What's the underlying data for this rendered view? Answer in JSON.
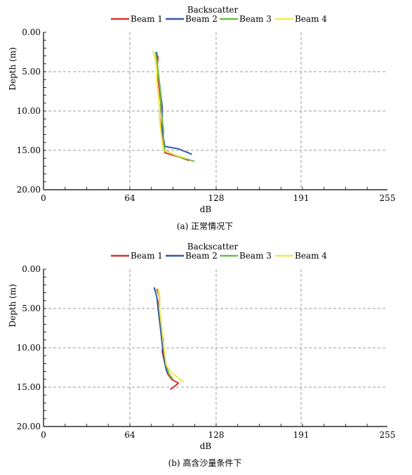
{
  "chart_data": [
    {
      "type": "line",
      "title": "Backscatter",
      "xlabel": "dB",
      "ylabel": "Depth (m)",
      "xlim": [
        0,
        255
      ],
      "ylim": [
        0,
        20
      ],
      "y_inverted": true,
      "xticks": [
        "0",
        "64",
        "128",
        "191",
        "255"
      ],
      "xtick_values": [
        0,
        64,
        128,
        191,
        255
      ],
      "yticks": [
        "0.00",
        "5.00",
        "10.00",
        "15.00",
        "20.00"
      ],
      "ytick_values": [
        0,
        5,
        10,
        15,
        20
      ],
      "grid": true,
      "legend_position": "top",
      "caption": "(a) 正常情况下",
      "series": [
        {
          "name": "Beam 1",
          "color": "#d9342b",
          "x": [
            83,
            85,
            84,
            85,
            86,
            87,
            86,
            87,
            88,
            89,
            90,
            100,
            108
          ],
          "y": [
            2.5,
            3.2,
            4.5,
            6.0,
            7.5,
            9.0,
            10.5,
            12.0,
            13.5,
            14.5,
            15.3,
            15.8,
            16.3
          ]
        },
        {
          "name": "Beam 2",
          "color": "#2e5aa8",
          "x": [
            84,
            84,
            85,
            86,
            87,
            88,
            88,
            88,
            89,
            90,
            100,
            110
          ],
          "y": [
            2.5,
            3.5,
            5.0,
            6.5,
            8.0,
            9.5,
            11.0,
            12.5,
            13.5,
            14.5,
            14.8,
            15.5
          ]
        },
        {
          "name": "Beam 3",
          "color": "#6cbd45",
          "x": [
            83,
            84,
            85,
            86,
            87,
            87,
            88,
            89,
            89,
            90,
            100,
            112
          ],
          "y": [
            2.5,
            3.5,
            5.0,
            6.5,
            8.0,
            9.5,
            11.0,
            12.5,
            14.0,
            15.0,
            15.8,
            16.4
          ]
        },
        {
          "name": "Beam 4",
          "color": "#f2e94e",
          "x": [
            81,
            83,
            84,
            84,
            85,
            86,
            86,
            87,
            88,
            89,
            98,
            106
          ],
          "y": [
            2.3,
            3.5,
            5.0,
            6.5,
            8.0,
            9.5,
            11.0,
            12.5,
            14.0,
            15.0,
            15.6,
            16.0
          ]
        }
      ]
    },
    {
      "type": "line",
      "title": "Backscatter",
      "xlabel": "dB",
      "ylabel": "Depth (m)",
      "xlim": [
        0,
        255
      ],
      "ylim": [
        0,
        20
      ],
      "y_inverted": true,
      "xticks": [
        "0",
        "64",
        "128",
        "191",
        "255"
      ],
      "xtick_values": [
        0,
        64,
        128,
        191,
        255
      ],
      "yticks": [
        "0.00",
        "5.00",
        "10.00",
        "15.00",
        "20.00"
      ],
      "ytick_values": [
        0,
        5,
        10,
        15,
        20
      ],
      "grid": true,
      "legend_position": "top",
      "caption": "(b) 高含沙量条件下",
      "series": [
        {
          "name": "Beam 1",
          "color": "#d9342b",
          "x": [
            84,
            86,
            85,
            86,
            87,
            89,
            88,
            90,
            92,
            95,
            100,
            94
          ],
          "y": [
            2.5,
            3.5,
            5.0,
            6.5,
            7.5,
            9.0,
            10.5,
            12.0,
            13.3,
            14.0,
            14.5,
            15.3
          ]
        },
        {
          "name": "Beam 2",
          "color": "#2e5aa8",
          "x": [
            82,
            84,
            85,
            86,
            87,
            88,
            89,
            90,
            91,
            92
          ],
          "y": [
            2.3,
            3.5,
            5.0,
            6.5,
            8.0,
            9.5,
            11.0,
            12.0,
            12.8,
            13.2
          ]
        },
        {
          "name": "Beam 3",
          "color": "#6cbd45",
          "x": [
            85,
            86,
            86,
            87,
            88,
            89,
            90,
            91,
            93,
            96
          ],
          "y": [
            2.5,
            3.5,
            5.0,
            6.5,
            8.0,
            9.5,
            11.0,
            12.2,
            13.3,
            14.0
          ]
        },
        {
          "name": "Beam 4",
          "color": "#f2e94e",
          "x": [
            85,
            86,
            86,
            87,
            88,
            89,
            90,
            91,
            95,
            100,
            104
          ],
          "y": [
            2.5,
            3.5,
            5.0,
            6.5,
            8.0,
            9.5,
            11.0,
            12.2,
            13.2,
            13.8,
            14.4
          ]
        }
      ]
    }
  ]
}
